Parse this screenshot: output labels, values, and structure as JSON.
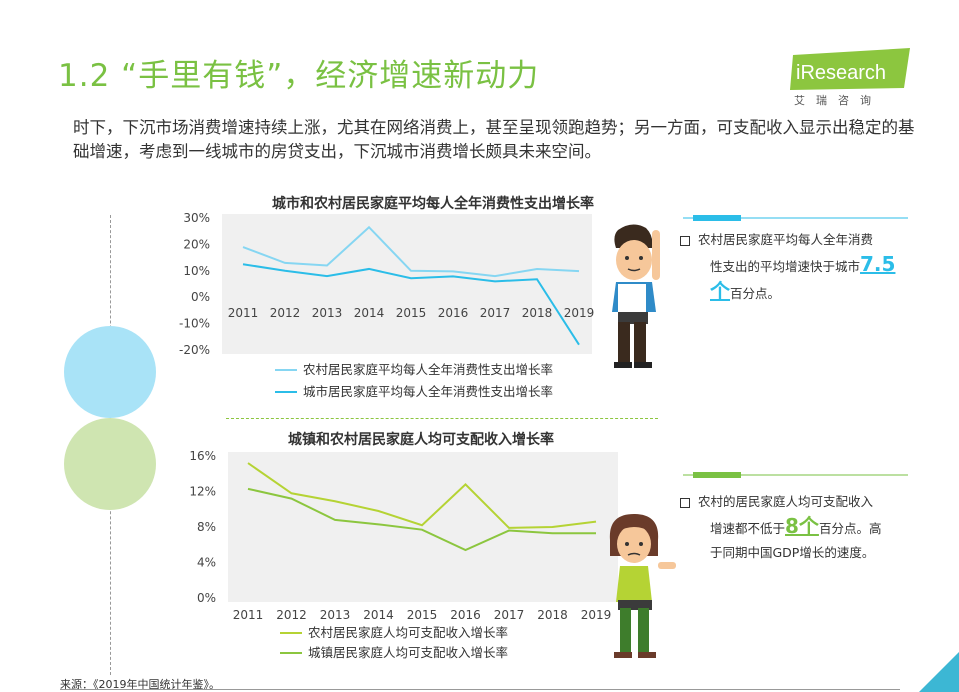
{
  "header": {
    "title": "1.2 “手里有钱”，经济增速新动力",
    "logo_word": "iResearch",
    "logo_sub": "艾瑞咨询"
  },
  "intro": "时下，下沉市场消费增速持续上涨，尤其在网络消费上，甚至呈现领跑趋势；另一方面，可支配收入显示出稳定的基础增速，考虑到一线城市的房贷支出，下沉城市消费增长颇具未来空间。",
  "colors": {
    "accent_green": "#7ac143",
    "accent_blue": "#2bbde8",
    "light_blue": "#86d6f2",
    "light_green": "#b5d334",
    "mid_green": "#8cc63f"
  },
  "chart_data": [
    {
      "type": "line",
      "title": "城市和农村居民家庭平均每人全年消费性支出增长率",
      "categories": [
        "2011",
        "2012",
        "2013",
        "2014",
        "2015",
        "2016",
        "2017",
        "2018",
        "2019"
      ],
      "ylim": [
        -20,
        30
      ],
      "yticks": [
        "30%",
        "20%",
        "10%",
        "0%",
        "-10%",
        "-20%"
      ],
      "grid": false,
      "legend_position": "bottom",
      "series": [
        {
          "name": "农村居民家庭平均每人全年消费性支出增长率",
          "color": "#86d6f2",
          "values": [
            19,
            13,
            12,
            26.5,
            10,
            9.8,
            8,
            10.7,
            9.9
          ]
        },
        {
          "name": "城市居民家庭平均每人全年消费性支出增长率",
          "color": "#2bbde8",
          "values": [
            12.5,
            10,
            8,
            10.7,
            7.2,
            7.9,
            6,
            6.8,
            -18
          ]
        }
      ]
    },
    {
      "type": "line",
      "title": "城镇和农村居民家庭人均可支配收入增长率",
      "categories": [
        "2011",
        "2012",
        "2013",
        "2014",
        "2015",
        "2016",
        "2017",
        "2018",
        "2019"
      ],
      "ylim": [
        0,
        16
      ],
      "yticks": [
        "16%",
        "12%",
        "8%",
        "4%",
        "0%"
      ],
      "grid": false,
      "legend_position": "bottom",
      "series": [
        {
          "name": "农村居民家庭人均可支配收入增长率",
          "color": "#b5d334",
          "values": [
            15.2,
            11.8,
            10.9,
            9.8,
            8.2,
            12.8,
            7.9,
            8.0,
            8.6
          ]
        },
        {
          "name": "城镇居民家庭人均可支配收入增长率",
          "color": "#8cc63f",
          "values": [
            12.3,
            11.2,
            8.8,
            8.3,
            7.7,
            5.4,
            7.6,
            7.3,
            7.3
          ]
        }
      ]
    }
  ],
  "panel1": {
    "text_a": "农村居民家庭平均每人全年消费",
    "text_b": "性支出的平均增速快于城市",
    "big": "7.5",
    "big2": "个",
    "text_c": "百分点。"
  },
  "panel2": {
    "text_a": "农村的居民家庭人均可支配收入",
    "text_b": "增速都不低于",
    "big": "8个",
    "text_c": "百分点。高",
    "text_d": "于同期中国GDP增长的速度。"
  },
  "source": "来源：《2019年中国统计年鉴》。"
}
